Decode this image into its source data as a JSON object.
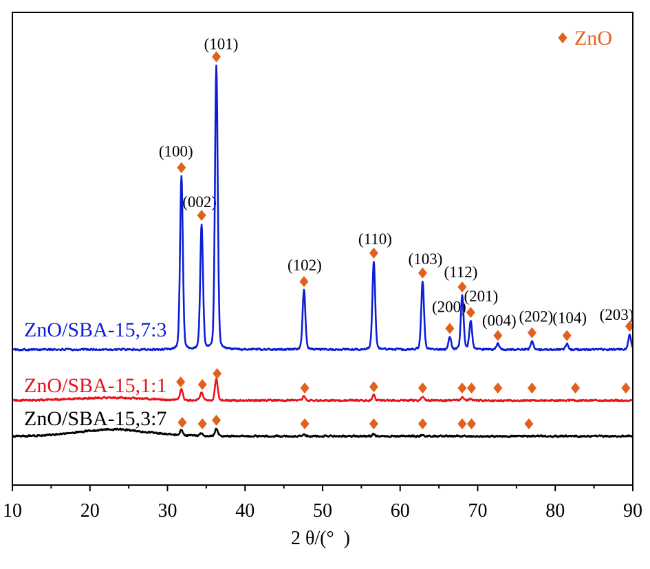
{
  "chart_data": {
    "type": "line",
    "xlabel": "2 θ/(°  )",
    "ylabel": "",
    "xlim": [
      10,
      90
    ],
    "x_ticks": [
      10,
      20,
      30,
      40,
      50,
      60,
      70,
      80,
      90
    ],
    "y_ticks": [],
    "grid": false,
    "legend": {
      "position": "top-right",
      "entries": [
        {
          "label": "ZnO",
          "marker": "diamond",
          "color": "#e0601c"
        }
      ]
    },
    "series": [
      {
        "name": "ZnO/SBA-15,7:3",
        "color": "#0d1ed6",
        "peaks": [
          {
            "two_theta": 31.8,
            "intensity": 61,
            "hkl": "(100)"
          },
          {
            "two_theta": 34.4,
            "intensity": 44,
            "hkl": "(002)"
          },
          {
            "two_theta": 36.3,
            "intensity": 100,
            "hkl": "(101)"
          },
          {
            "two_theta": 47.6,
            "intensity": 21,
            "hkl": "(102)"
          },
          {
            "two_theta": 56.6,
            "intensity": 31,
            "hkl": "(110)"
          },
          {
            "two_theta": 62.9,
            "intensity": 24,
            "hkl": "(103)"
          },
          {
            "two_theta": 66.4,
            "intensity": 4.4,
            "hkl": "(200)"
          },
          {
            "two_theta": 68.0,
            "intensity": 19,
            "hkl": "(112)"
          },
          {
            "two_theta": 69.1,
            "intensity": 10,
            "hkl": "(201)"
          },
          {
            "two_theta": 72.6,
            "intensity": 2,
            "hkl": "(004)"
          },
          {
            "two_theta": 77.0,
            "intensity": 3,
            "hkl": "(202)"
          },
          {
            "two_theta": 81.5,
            "intensity": 2,
            "hkl": "(104)"
          },
          {
            "two_theta": 89.6,
            "intensity": 5.3,
            "hkl": "(203)"
          }
        ],
        "markers": [
          31.8,
          34.4,
          36.3,
          47.6,
          56.6,
          62.9,
          66.4,
          68.0,
          69.1,
          72.6,
          77.0,
          81.5,
          89.6
        ]
      },
      {
        "name": "ZnO/SBA-15,1:1",
        "color": "#e8141c",
        "hump": {
          "two_theta": 22.5,
          "intensity": 1.0
        },
        "peaks": [
          {
            "two_theta": 31.8,
            "intensity": 4.1
          },
          {
            "two_theta": 34.4,
            "intensity": 3.1
          },
          {
            "two_theta": 36.3,
            "intensity": 7.7
          },
          {
            "two_theta": 47.6,
            "intensity": 1.5
          },
          {
            "two_theta": 56.6,
            "intensity": 1.9
          },
          {
            "two_theta": 62.9,
            "intensity": 1.2
          },
          {
            "two_theta": 68.0,
            "intensity": 1.0
          },
          {
            "two_theta": 69.1,
            "intensity": 0.7
          }
        ],
        "markers": [
          31.7,
          34.5,
          36.4,
          47.7,
          56.6,
          62.9,
          68.0,
          69.2,
          72.6,
          77.0,
          82.6,
          89.1
        ]
      },
      {
        "name": "ZnO/SBA-15,3:7",
        "color": "#000000",
        "hump": {
          "two_theta": 23.0,
          "intensity": 2.4
        },
        "peaks": [
          {
            "two_theta": 31.8,
            "intensity": 1.9
          },
          {
            "two_theta": 34.4,
            "intensity": 1.0
          },
          {
            "two_theta": 36.3,
            "intensity": 2.7
          },
          {
            "two_theta": 47.6,
            "intensity": 0.5
          },
          {
            "two_theta": 56.6,
            "intensity": 0.7
          },
          {
            "two_theta": 62.9,
            "intensity": 0.5
          }
        ],
        "markers": [
          31.9,
          34.5,
          36.3,
          47.7,
          56.6,
          62.9,
          68.0,
          69.2,
          76.6
        ]
      }
    ]
  }
}
